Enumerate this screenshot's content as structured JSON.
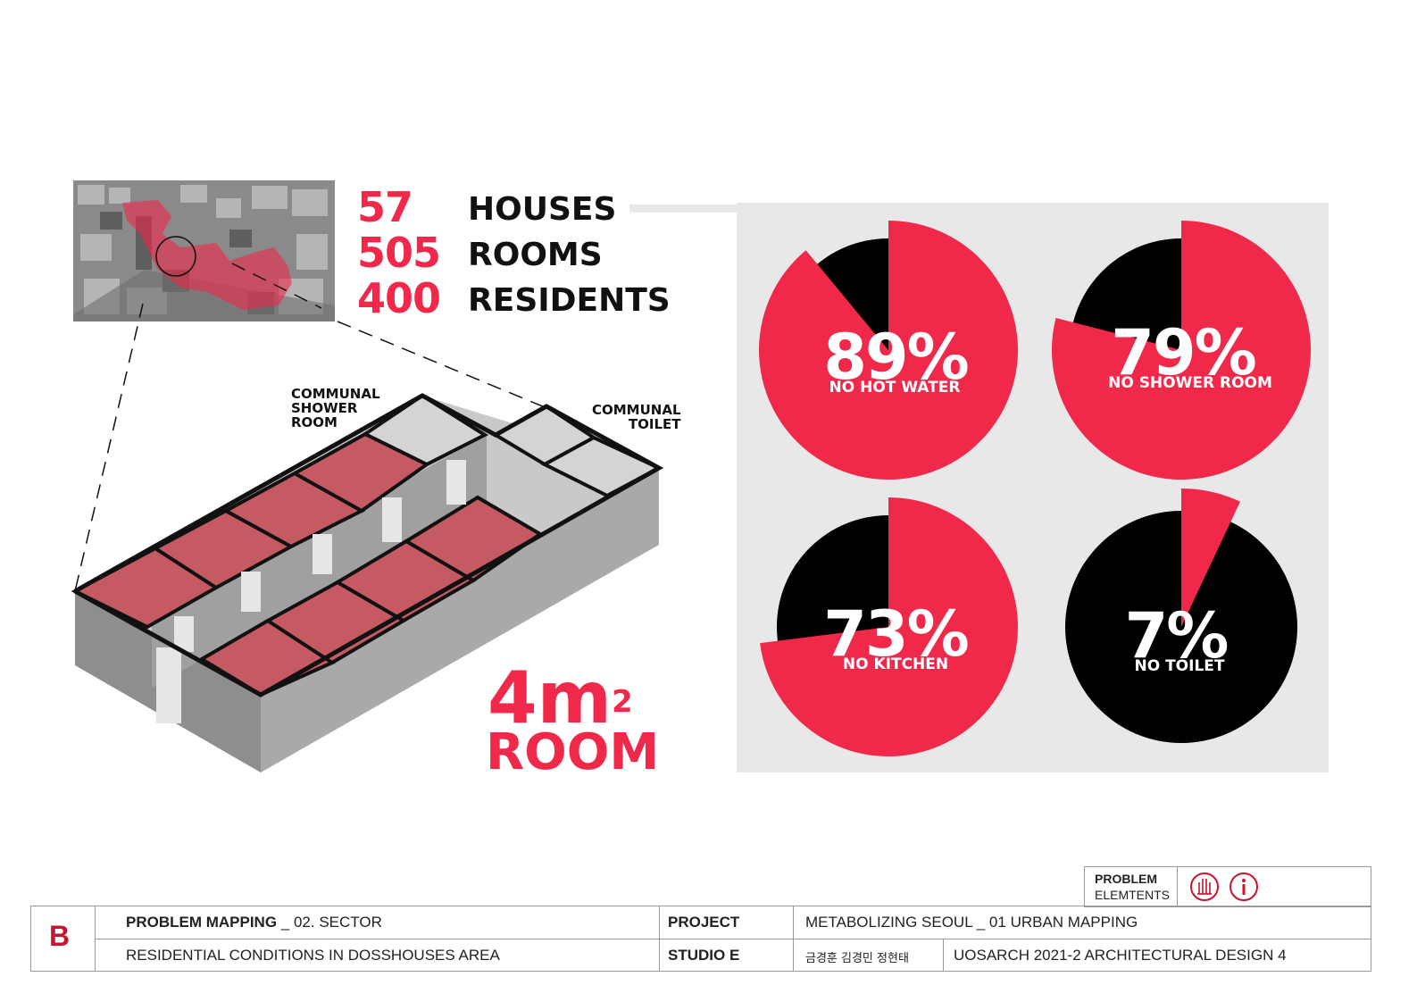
{
  "stats": [
    {
      "value": "57",
      "label": "HOUSES"
    },
    {
      "value": "505",
      "label": "ROOMS"
    },
    {
      "value": "400",
      "label": "RESIDENTS"
    }
  ],
  "iso_labels": {
    "shower": "COMMUNAL\nSHOWER\nROOM",
    "toilet": "COMMUNAL\nTOILET"
  },
  "room": {
    "area": "4m",
    "sup": "2",
    "word": "ROOM"
  },
  "pies": [
    {
      "percent": 89,
      "text": "89%",
      "caption": "NO HOT WATER"
    },
    {
      "percent": 79,
      "text": "79%",
      "caption": "NO SHOWER ROOM"
    },
    {
      "percent": 73,
      "text": "73%",
      "caption": "NO KITCHEN"
    },
    {
      "percent": 7,
      "text": "7%",
      "caption": "NO TOILET"
    }
  ],
  "colors": {
    "accent": "#f0284a",
    "dark": "#000000",
    "panel": "#e8e8e8"
  },
  "titleblock": {
    "legend_title": "PROBLEM",
    "legend_sub": "ELEMTENTS",
    "letter": "B",
    "title_bold": "PROBLEM MAPPING",
    "title_rest": " _ 02. SECTOR",
    "subtitle": "RESIDENTIAL CONDITIONS IN DOSSHOUSES AREA",
    "project_label": "PROJECT",
    "project_value": "METABOLIZING SEOUL _ 01 URBAN MAPPING",
    "studio_label": "STUDIO E",
    "authors": "금경훈 김경민 정현태",
    "course": "UOSARCH 2021-2 ARCHITECTURAL DESIGN 4"
  }
}
